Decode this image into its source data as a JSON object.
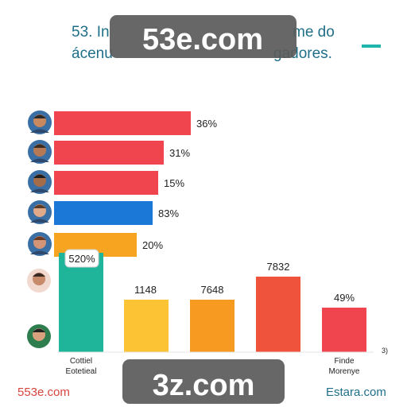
{
  "header": {
    "title_line1_left": "53. In",
    "title_line1_right": "me do",
    "title_line2_left": "ácenu",
    "title_line2_right": "gadores.",
    "title_color": "#1f6f88",
    "accent_dash_color": "#1fb5ad"
  },
  "watermarks": {
    "top": "53e.com",
    "bottom": "3z.com"
  },
  "footer": {
    "left": "553e.com",
    "right": "Estara.com",
    "left_color": "#d6453e",
    "right_color": "#1f6f88"
  },
  "chart_data": [
    {
      "type": "bar",
      "orientation": "horizontal",
      "categories": [
        "",
        "",
        "",
        "",
        ""
      ],
      "values": [
        36,
        31,
        15,
        83,
        20
      ],
      "value_labels": [
        "36%",
        "31%",
        "15%",
        "83%",
        "20%"
      ],
      "colors": [
        "#f0444f",
        "#f0444f",
        "#f0444f",
        "#1b78d6",
        "#f7a421"
      ],
      "avatars": [
        "avatar-1",
        "avatar-2",
        "avatar-3",
        "avatar-4",
        "avatar-5"
      ]
    },
    {
      "type": "bar",
      "orientation": "vertical",
      "categories": [
        "Cottiel\nEotetieal",
        "",
        "",
        "",
        "Finde\nMorenye"
      ],
      "values": [
        520,
        1148,
        7648,
        7832,
        49
      ],
      "value_labels": [
        "520%",
        "1148",
        "7648",
        "7832",
        "49%"
      ],
      "colors": [
        "#1fb59b",
        "#fcc335",
        "#f79a22",
        "#f0533c",
        "#f0444f"
      ],
      "stray_label": "3)"
    }
  ]
}
